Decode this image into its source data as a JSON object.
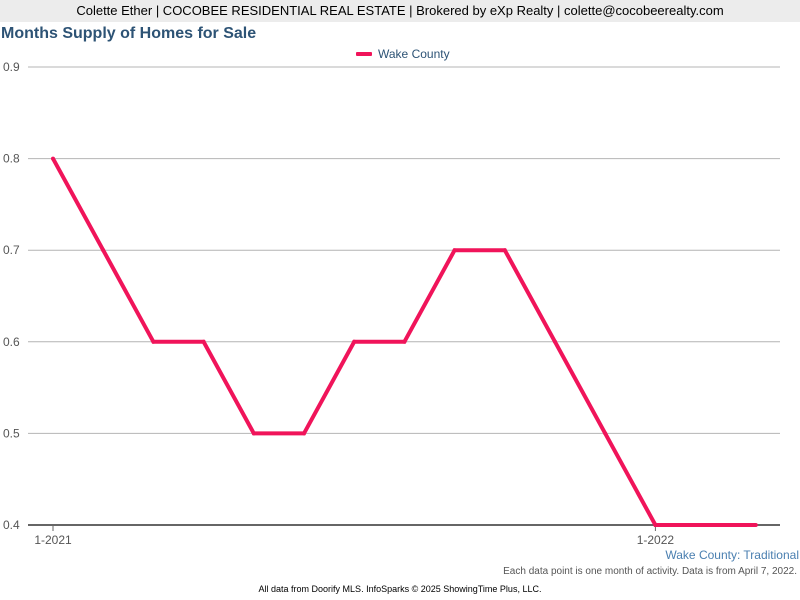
{
  "header": {
    "banner": "Colette Ether | COCOBEE RESIDENTIAL REAL ESTATE | Brokered by eXp Realty | colette@cocobeerealty.com"
  },
  "colors": {
    "series": "#f0145a",
    "title": "#2d5375",
    "gridline": "#b4b4b4",
    "axis": "#666666"
  },
  "chart_data": {
    "type": "line",
    "title": "Months Supply of Homes for Sale",
    "xlabel": "",
    "ylabel": "",
    "x": [
      "1-2021",
      "2-2021",
      "3-2021",
      "4-2021",
      "5-2021",
      "6-2021",
      "7-2021",
      "8-2021",
      "9-2021",
      "10-2021",
      "11-2021",
      "12-2021",
      "1-2022",
      "2-2022",
      "3-2022"
    ],
    "x_tick_labels": [
      "1-2021",
      "1-2022"
    ],
    "ylim": [
      0.4,
      0.9
    ],
    "y_ticks": [
      0.4,
      0.5,
      0.6,
      0.7,
      0.8,
      0.9
    ],
    "y_tick_labels": [
      "0.4",
      "0.5",
      "0.6",
      "0.7",
      "0.8",
      "0.9"
    ],
    "grid": true,
    "legend_position": "top-center",
    "series": [
      {
        "name": "Wake County",
        "values": [
          0.8,
          0.7,
          0.6,
          0.6,
          0.5,
          0.5,
          0.6,
          0.6,
          0.7,
          0.7,
          0.6,
          0.5,
          0.4,
          0.4,
          0.4
        ]
      }
    ]
  },
  "annotations": {
    "series_caption": "Wake County: Traditional",
    "note": "Each data point is one month of activity. Data is from April 7, 2022."
  },
  "footer": {
    "text": "All data from Doorify MLS. InfoSparks © 2025 ShowingTime Plus, LLC."
  }
}
